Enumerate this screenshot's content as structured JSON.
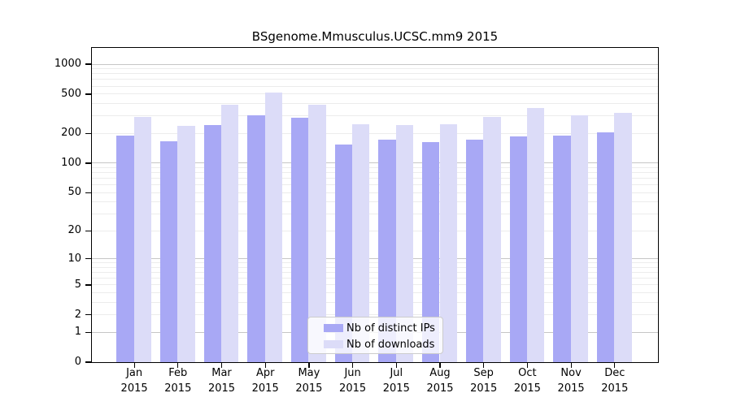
{
  "title": "BSgenome.Mmusculus.UCSC.mm9 2015",
  "chart_data": {
    "type": "bar",
    "title": "BSgenome.Mmusculus.UCSC.mm9 2015",
    "categories": [
      "Jan",
      "Feb",
      "Mar",
      "Apr",
      "May",
      "Jun",
      "Jul",
      "Aug",
      "Sep",
      "Oct",
      "Nov",
      "Dec"
    ],
    "year_label": "2015",
    "series": [
      {
        "name": "Nb of distinct IPs",
        "color": "#a8a8f5",
        "values": [
          190,
          166,
          245,
          303,
          288,
          155,
          173,
          162,
          173,
          188,
          190,
          204
        ]
      },
      {
        "name": "Nb of downloads",
        "color": "#dcdcf8",
        "values": [
          292,
          238,
          393,
          520,
          393,
          250,
          243,
          249,
          292,
          364,
          303,
          320
        ]
      }
    ],
    "xlabel": "",
    "ylabel": "",
    "yscale": "log10(1+x)",
    "yticks": [
      1000,
      500,
      200,
      100,
      50,
      20,
      10,
      5,
      2,
      1,
      0
    ],
    "ylim": [
      0,
      1460
    ],
    "grid": "horizontal major and log-minor gridlines",
    "legend_position": "inside lower center"
  },
  "legend": {
    "items": [
      {
        "label": "Nb of distinct IPs"
      },
      {
        "label": "Nb of downloads"
      }
    ]
  },
  "colors": {
    "bar_distinct_ips": "#a8a8f5",
    "bar_downloads": "#dcdcf8",
    "grid_major": "#c6c6c6",
    "grid_minor": "#ececec",
    "frame": "#000000",
    "background": "#ffffff",
    "legend_border": "#cccccc"
  }
}
